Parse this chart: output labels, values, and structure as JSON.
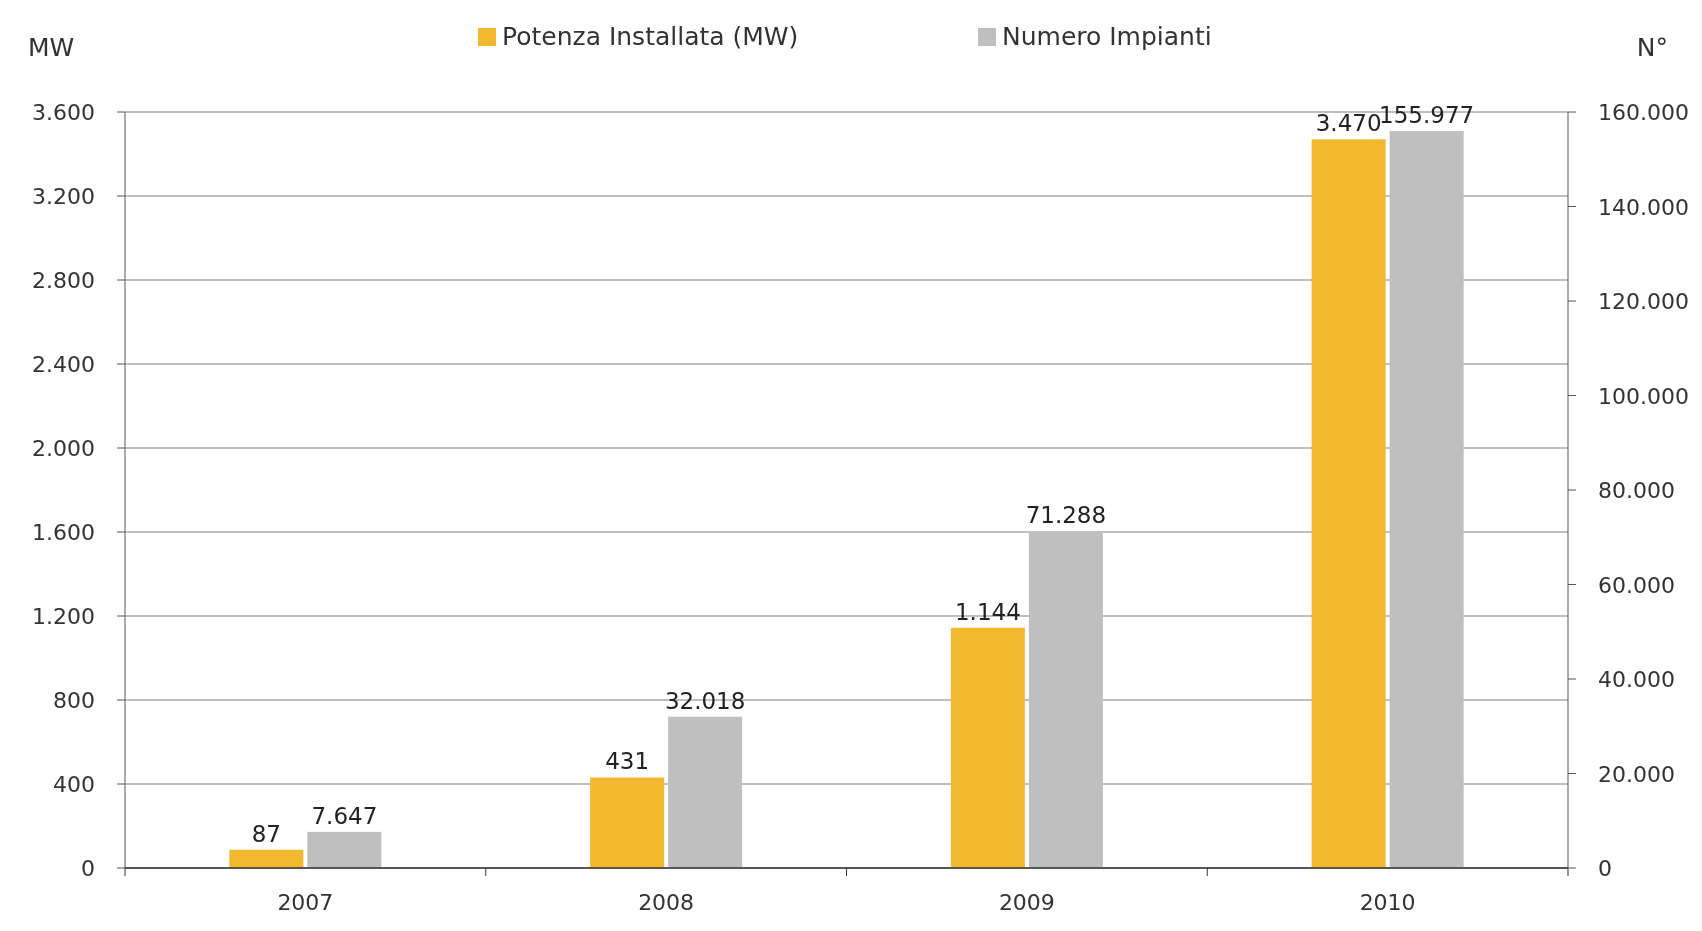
{
  "chart_data": {
    "type": "bar",
    "categories": [
      "2007",
      "2008",
      "2009",
      "2010"
    ],
    "ylabel": "MW",
    "y2label": "N°",
    "ylim": [
      0,
      3600
    ],
    "yticks": [
      0,
      400,
      800,
      {
        "value": 1200,
        "label": "1.200"
      },
      {
        "value": 1600,
        "label": "1.600"
      },
      {
        "value": 2000,
        "label": "2.000"
      },
      {
        "value": 2400,
        "label": "2.400"
      },
      {
        "value": 2800,
        "label": "2.800"
      },
      {
        "value": 3200,
        "label": "3.200"
      },
      {
        "value": 3600,
        "label": "3.600"
      }
    ],
    "y2lim": [
      0,
      160000
    ],
    "y2ticks": [
      0,
      {
        "value": 20000,
        "label": "20.000"
      },
      {
        "value": 40000,
        "label": "40.000"
      },
      {
        "value": 60000,
        "label": "60.000"
      },
      {
        "value": 80000,
        "label": "80.000"
      },
      {
        "value": 100000,
        "label": "100.000"
      },
      {
        "value": 120000,
        "label": "120.000"
      },
      {
        "value": 140000,
        "label": "140.000"
      },
      {
        "value": 160000,
        "label": "160.000"
      }
    ],
    "grid": "y",
    "legend": "top",
    "series": [
      {
        "name": "Potenza Installata (MW)",
        "color": "#f2b830",
        "values": [
          87,
          431,
          1144,
          3470
        ],
        "value_labels": [
          "87",
          "431",
          "1.144",
          "3.470"
        ]
      },
      {
        "name": "Numero Impianti",
        "color": "#bfbfbf",
        "axis": "y2",
        "values": [
          7647,
          32018,
          71288,
          155977
        ],
        "value_labels": [
          "7.647",
          "32.018",
          "71.288",
          "155.977"
        ]
      }
    ]
  }
}
